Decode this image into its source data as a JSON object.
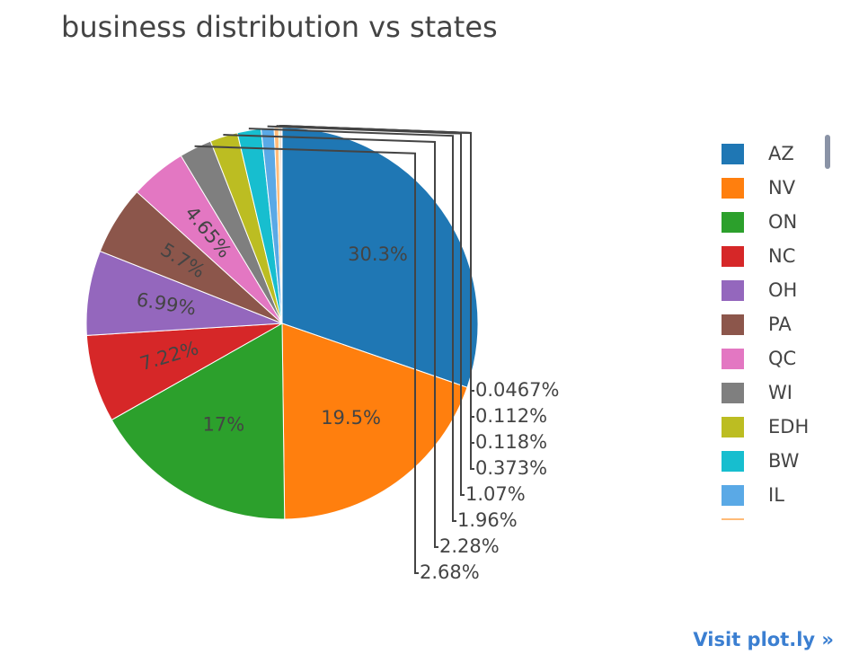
{
  "chart_data": {
    "type": "pie",
    "title": "business distribution vs states",
    "slices": [
      {
        "label": "AZ",
        "value": 30.3,
        "text": "30.3%",
        "color": "#1f77b4"
      },
      {
        "label": "NV",
        "value": 19.5,
        "text": "19.5%",
        "color": "#ff7f0e"
      },
      {
        "label": "ON",
        "value": 17,
        "text": "17%",
        "color": "#2ca02c"
      },
      {
        "label": "NC",
        "value": 7.22,
        "text": "7.22%",
        "color": "#d62728"
      },
      {
        "label": "OH",
        "value": 6.99,
        "text": "6.99%",
        "color": "#9467bd"
      },
      {
        "label": "PA",
        "value": 5.7,
        "text": "5.7%",
        "color": "#8c564b"
      },
      {
        "label": "QC",
        "value": 4.65,
        "text": "4.65%",
        "color": "#e377c2"
      },
      {
        "label": "WI",
        "value": 2.68,
        "text": "2.68%",
        "color": "#7f7f7f"
      },
      {
        "label": "EDH",
        "value": 2.28,
        "text": "2.28%",
        "color": "#bcbd22"
      },
      {
        "label": "BW",
        "value": 1.96,
        "text": "1.96%",
        "color": "#17becf"
      },
      {
        "label": "IL",
        "value": 1.07,
        "text": "1.07%",
        "color": "#5aa9e6"
      },
      {
        "label": "",
        "value": 0.373,
        "text": "0.373%",
        "color": "#ffbb78"
      },
      {
        "label": "",
        "value": 0.118,
        "text": "0.118%",
        "color": "#98df8a"
      },
      {
        "label": "",
        "value": 0.112,
        "text": "0.112%",
        "color": "#ff9896"
      },
      {
        "label": "",
        "value": 0.0467,
        "text": "0.0467%",
        "color": "#c5b0d5"
      }
    ],
    "legend_position": "right"
  },
  "footer": {
    "link_text": "Visit plot.ly »"
  }
}
